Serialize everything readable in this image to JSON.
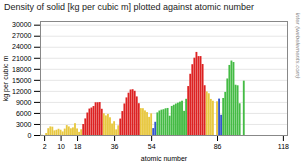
{
  "chart_data": {
    "type": "bar",
    "title": "Density of solid [kg per cubic m] plotted against atomic number",
    "xlabel": "atomic number",
    "ylabel": "kg per cubic m",
    "annotations": [
      "© Mark Winter (webelements.com)"
    ],
    "x": [
      1,
      2,
      3,
      4,
      5,
      6,
      7,
      8,
      9,
      10,
      11,
      12,
      13,
      14,
      15,
      16,
      17,
      18,
      19,
      20,
      21,
      22,
      23,
      24,
      25,
      26,
      27,
      28,
      29,
      30,
      31,
      32,
      33,
      34,
      35,
      36,
      37,
      38,
      39,
      40,
      41,
      42,
      43,
      44,
      45,
      46,
      47,
      48,
      49,
      50,
      51,
      52,
      53,
      54,
      55,
      56,
      57,
      58,
      59,
      60,
      61,
      62,
      63,
      64,
      65,
      66,
      67,
      68,
      69,
      70,
      71,
      72,
      73,
      74,
      75,
      76,
      77,
      78,
      79,
      80,
      81,
      82,
      83,
      84,
      85,
      86,
      87,
      88,
      89,
      90,
      91,
      92,
      93,
      94,
      95,
      96,
      97,
      98,
      99,
      100,
      101,
      102,
      103,
      104,
      105,
      106,
      107,
      108,
      109,
      110,
      111,
      112,
      113,
      114,
      115,
      116,
      117,
      118
    ],
    "values": [
      71,
      0,
      534,
      1850,
      2340,
      2267,
      1251,
      1429,
      1696,
      1442,
      968,
      1738,
      2700,
      2330,
      1823,
      2067,
      3214,
      1784,
      856,
      1550,
      2985,
      4507,
      6110,
      7190,
      7470,
      7874,
      8900,
      8908,
      8960,
      7130,
      5907,
      5323,
      5727,
      4819,
      3120,
      3749,
      1532,
      2630,
      4469,
      6506,
      8570,
      10220,
      11500,
      12370,
      12450,
      12023,
      10490,
      8650,
      7310,
      7287,
      6685,
      6232,
      4930,
      5887,
      1873,
      3594,
      6145,
      6657,
      6890,
      7010,
      7260,
      7353,
      5244,
      7901,
      8219,
      8551,
      8795,
      9066,
      9321,
      6570,
      9841,
      13310,
      16650,
      19250,
      21020,
      22590,
      21450,
      21460,
      19300,
      13534,
      11850,
      11342,
      9807,
      9320,
      0,
      9167,
      9900,
      5500,
      10070,
      11720,
      15370,
      19050,
      20250,
      19840,
      13670,
      13510,
      8630,
      0,
      14780,
      0,
      0,
      0,
      0,
      0,
      0,
      0,
      0,
      0,
      0,
      0,
      0,
      0,
      0,
      0,
      0,
      0,
      0,
      0
    ],
    "colors": [
      "#e8c840",
      "#e8c840",
      "#e8c840",
      "#e8c840",
      "#e8c840",
      "#e8c840",
      "#e8c840",
      "#e8c840",
      "#e8c840",
      "#e8c840",
      "#e8c840",
      "#e8c840",
      "#e8c840",
      "#e8c840",
      "#e8c840",
      "#e8c840",
      "#e8c840",
      "#e8c840",
      "#e8c840",
      "#e8c840",
      "#dd2222",
      "#dd2222",
      "#dd2222",
      "#dd2222",
      "#dd2222",
      "#dd2222",
      "#dd2222",
      "#dd2222",
      "#dd2222",
      "#dd2222",
      "#e8c840",
      "#e8c840",
      "#e8c840",
      "#e8c840",
      "#e8c840",
      "#e8c840",
      "#e8c840",
      "#e8c840",
      "#dd2222",
      "#dd2222",
      "#dd2222",
      "#dd2222",
      "#dd2222",
      "#dd2222",
      "#dd2222",
      "#dd2222",
      "#dd2222",
      "#dd2222",
      "#e8c840",
      "#e8c840",
      "#e8c840",
      "#e8c840",
      "#e8c840",
      "#e8c840",
      "#3355cc",
      "#3355cc",
      "#44bb44",
      "#44bb44",
      "#44bb44",
      "#44bb44",
      "#44bb44",
      "#44bb44",
      "#44bb44",
      "#44bb44",
      "#44bb44",
      "#44bb44",
      "#44bb44",
      "#44bb44",
      "#44bb44",
      "#44bb44",
      "#44bb44",
      "#dd2222",
      "#dd2222",
      "#dd2222",
      "#dd2222",
      "#dd2222",
      "#dd2222",
      "#dd2222",
      "#dd2222",
      "#dd2222",
      "#e8c840",
      "#e8c840",
      "#e8c840",
      "#e8c840",
      "#e8c840",
      "#e8c840",
      "#3355cc",
      "#3355cc",
      "#44bb44",
      "#44bb44",
      "#44bb44",
      "#44bb44",
      "#44bb44",
      "#44bb44",
      "#44bb44",
      "#44bb44",
      "#44bb44",
      "#44bb44",
      "#44bb44",
      "#44bb44",
      "#44bb44",
      "#44bb44",
      "#44bb44",
      "#dd2222",
      "#dd2222",
      "#dd2222",
      "#dd2222",
      "#dd2222",
      "#dd2222",
      "#dd2222",
      "#dd2222",
      "#dd2222",
      "#e8c840",
      "#e8c840",
      "#e8c840",
      "#e8c840",
      "#e8c840",
      "#e8c840"
    ],
    "xlim": [
      0,
      120
    ],
    "xticks": [
      2,
      10,
      18,
      36,
      54,
      86,
      118
    ],
    "ylim": [
      0,
      31000
    ],
    "yticks": [
      0,
      3000,
      6000,
      9000,
      12000,
      15000,
      18000,
      21000,
      24000,
      27000,
      30000
    ],
    "grid": true
  }
}
